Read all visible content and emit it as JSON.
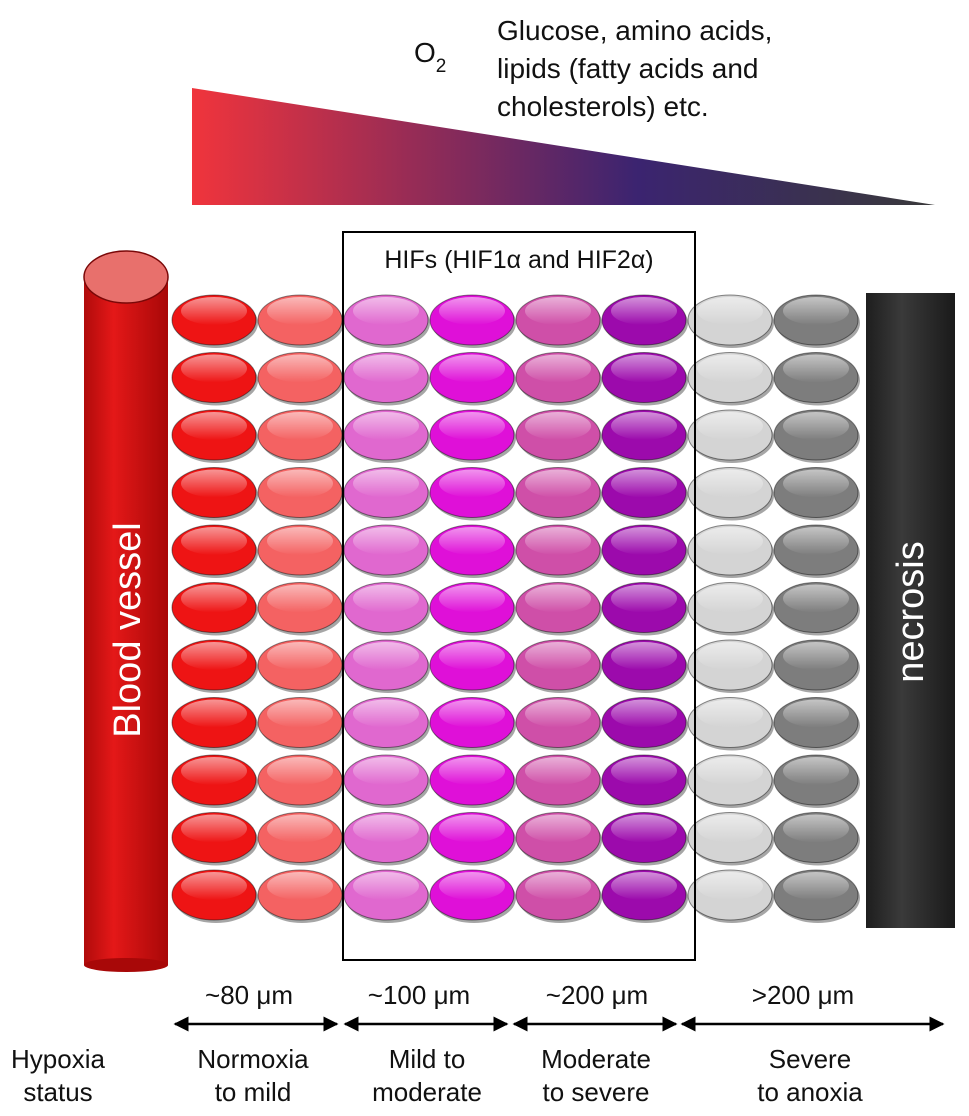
{
  "top": {
    "o2_main": "O",
    "o2_sub": "2",
    "nutrients_lines": [
      "Glucose, amino acids,",
      "lipids (fatty acids and",
      "cholesterols) etc."
    ]
  },
  "hifs_label": "HIFs (HIF1α and HIF2α)",
  "blood_vessel_label": "Blood vessel",
  "necrosis_label": "necrosis",
  "distances": [
    "~80 μm",
    "~100 μm",
    "~200 μm",
    ">200 μm"
  ],
  "status_title_lines": [
    "Hypoxia",
    "status"
  ],
  "statuses": [
    [
      "Normoxia",
      "to mild"
    ],
    [
      "Mild to",
      "moderate"
    ],
    [
      "Moderate",
      "to severe"
    ],
    [
      "Severe",
      "to anoxia"
    ]
  ],
  "cell_grid": {
    "rows": 11,
    "column_colors": [
      "#ee1414",
      "#f46262",
      "#e068cf",
      "#df10d8",
      "#cf4fa8",
      "#9c0aac",
      "#d4d4d4",
      "#7d7d7d"
    ]
  },
  "colors": {
    "gradient_start": "#f0343c",
    "gradient_mid": "#3b2470",
    "gradient_end": "#3a3a3a",
    "vessel": "#d21414",
    "vessel_top": "#e8706c",
    "necrosis": "#2f2f2f"
  }
}
